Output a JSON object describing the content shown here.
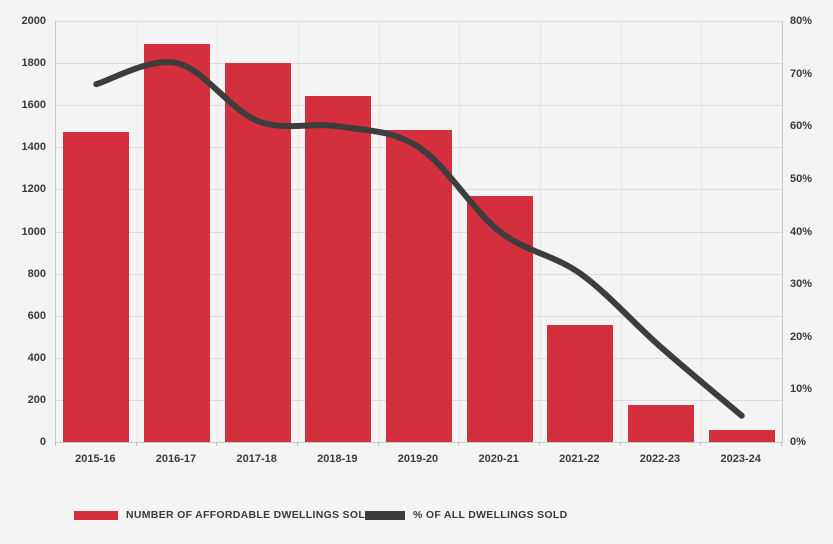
{
  "page": {
    "background_color": "#f4f4f4"
  },
  "chart_data": {
    "type": "combo",
    "subtypes": [
      "bar",
      "line"
    ],
    "categories": [
      "2015-16",
      "2016-17",
      "2017-18",
      "2018-19",
      "2019-20",
      "2020-21",
      "2021-22",
      "2022-23",
      "2023-24"
    ],
    "series": [
      {
        "name": "NUMBER OF AFFORDABLE DWELLINGS SOLD",
        "type": "bar",
        "axis": "left",
        "color": "#d32f3c",
        "values": [
          1475,
          1890,
          1800,
          1645,
          1480,
          1170,
          555,
          175,
          55
        ]
      },
      {
        "name": "% OF ALL DWELLINGS SOLD",
        "type": "line",
        "axis": "right",
        "color": "#3d3d3d",
        "values": [
          68,
          72,
          61,
          60,
          56,
          40,
          32,
          18,
          5
        ]
      }
    ],
    "left_axis": {
      "min": 0,
      "max": 2000,
      "step": 200,
      "tick_labels": [
        "0",
        "200",
        "400",
        "600",
        "800",
        "1000",
        "1200",
        "1400",
        "1600",
        "1800",
        "2000"
      ]
    },
    "right_axis": {
      "min": 0,
      "max": 80,
      "step": 10,
      "tick_labels": [
        "0%",
        "10%",
        "20%",
        "30%",
        "40%",
        "50%",
        "60%",
        "70%",
        "80%"
      ]
    },
    "grid": true,
    "legend_position": "bottom-left"
  },
  "styles": {
    "hgrid_color": "#dcdcdc",
    "vgrid_color": "#e6e6e6",
    "axis_border_color": "#c8c8c8",
    "label_color": "#3a3a3a"
  }
}
